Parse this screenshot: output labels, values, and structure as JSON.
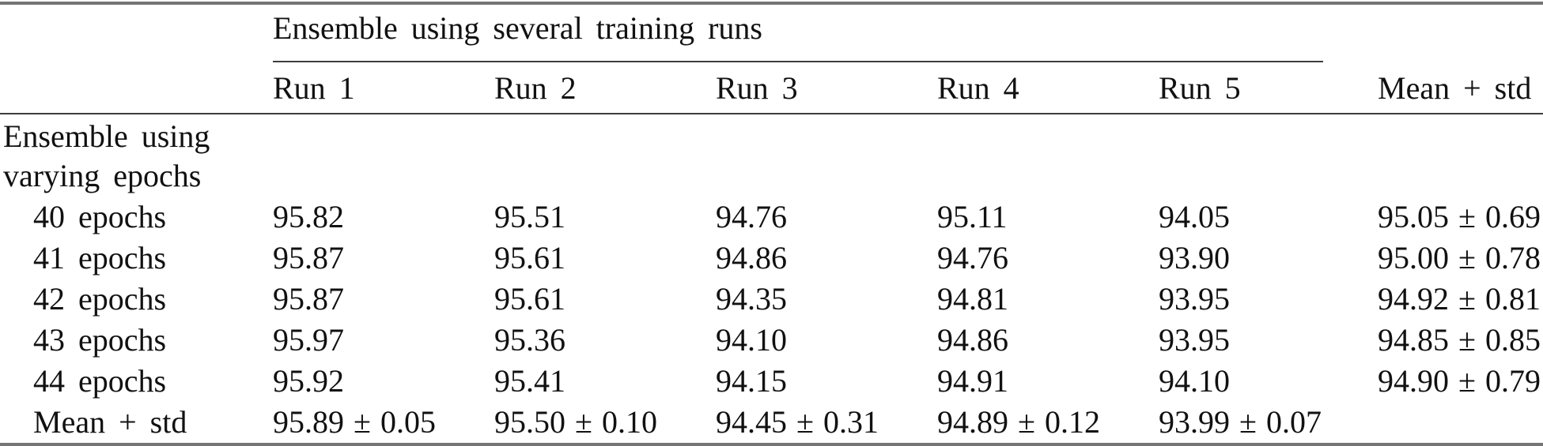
{
  "colors": {
    "background": "#ffffff",
    "text": "#111111",
    "rule_heavy": "#757575",
    "rule_light": "#3d3d3d"
  },
  "table": {
    "group_header": "Ensemble using several training runs",
    "column_headers": [
      "Run 1",
      "Run 2",
      "Run 3",
      "Run 4",
      "Run 5",
      "Mean + std"
    ],
    "section_label_line1": "Ensemble using",
    "section_label_line2": "varying epochs",
    "rows": [
      {
        "label": "40 epochs",
        "cells": [
          "95.82",
          "95.51",
          "94.76",
          "95.11",
          "94.05",
          "95.05 ± 0.69"
        ]
      },
      {
        "label": "41 epochs",
        "cells": [
          "95.87",
          "95.61",
          "94.86",
          "94.76",
          "93.90",
          "95.00 ± 0.78"
        ]
      },
      {
        "label": "42 epochs",
        "cells": [
          "95.87",
          "95.61",
          "94.35",
          "94.81",
          "93.95",
          "94.92 ± 0.81"
        ]
      },
      {
        "label": "43 epochs",
        "cells": [
          "95.97",
          "95.36",
          "94.10",
          "94.86",
          "93.95",
          "94.85 ± 0.85"
        ]
      },
      {
        "label": "44 epochs",
        "cells": [
          "95.92",
          "95.41",
          "94.15",
          "94.91",
          "94.10",
          "94.90 ± 0.79"
        ]
      },
      {
        "label": "Mean + std",
        "cells": [
          "95.89 ± 0.05",
          "95.50 ± 0.10",
          "94.45 ± 0.31",
          "94.89 ± 0.12",
          "93.99 ± 0.07",
          ""
        ]
      }
    ]
  }
}
